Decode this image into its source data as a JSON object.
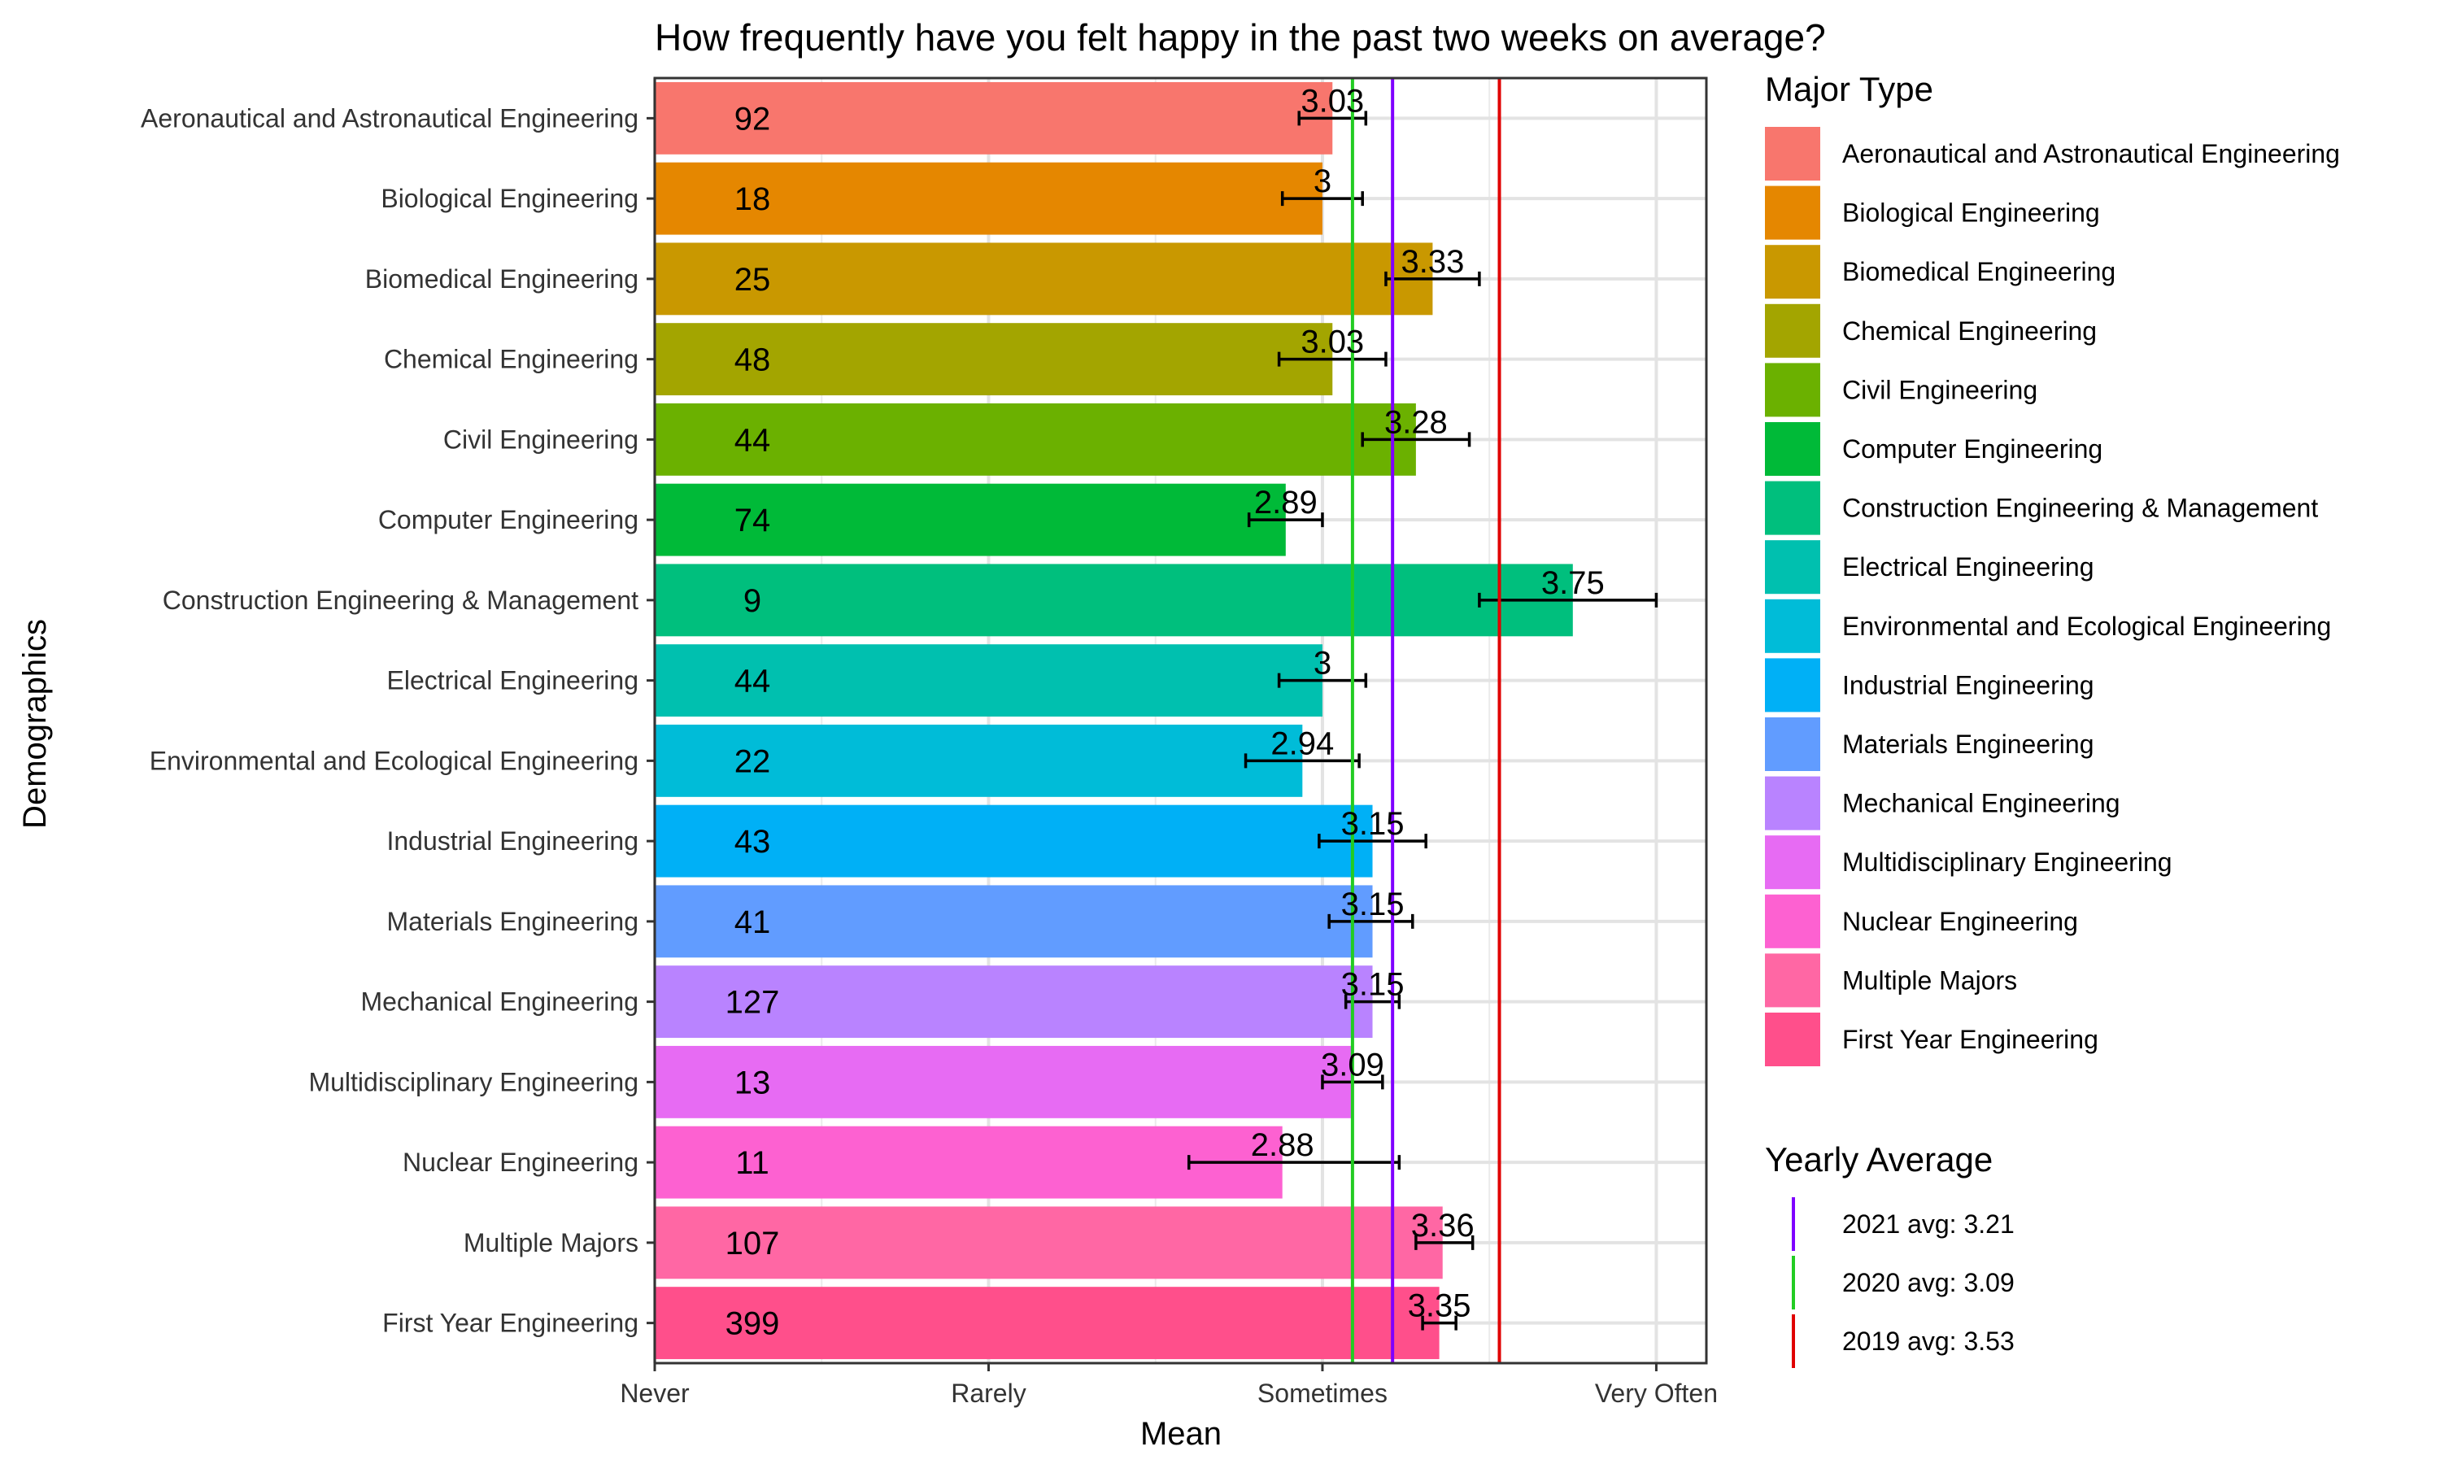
{
  "chart_data": {
    "type": "bar",
    "orientation": "horizontal",
    "title": "How frequently have you felt happy in the past two weeks on average?",
    "xlabel": "Mean",
    "ylabel": "Demographics",
    "xlim": [
      1,
      4.15
    ],
    "x_ticks": [
      {
        "value": 1,
        "label": "Never"
      },
      {
        "value": 2,
        "label": "Rarely"
      },
      {
        "value": 3,
        "label": "Sometimes"
      },
      {
        "value": 4,
        "label": "Very Often"
      }
    ],
    "grid": true,
    "categories": [
      "Aeronautical and Astronautical Engineering",
      "Biological Engineering",
      "Biomedical Engineering",
      "Chemical Engineering",
      "Civil Engineering",
      "Computer Engineering",
      "Construction Engineering & Management",
      "Electrical Engineering",
      "Environmental and Ecological Engineering",
      "Industrial Engineering",
      "Materials Engineering",
      "Mechanical Engineering",
      "Multidisciplinary Engineering",
      "Nuclear Engineering",
      "Multiple Majors",
      "First Year Engineering"
    ],
    "values": [
      3.03,
      3.0,
      3.33,
      3.03,
      3.28,
      2.89,
      3.75,
      3.0,
      2.94,
      3.15,
      3.15,
      3.15,
      3.09,
      2.88,
      3.36,
      3.35
    ],
    "value_labels": [
      "3.03",
      "3",
      "3.33",
      "3.03",
      "3.28",
      "2.89",
      "3.75",
      "3",
      "2.94",
      "3.15",
      "3.15",
      "3.15",
      "3.09",
      "2.88",
      "3.36",
      "3.35"
    ],
    "counts": [
      92,
      18,
      25,
      48,
      44,
      74,
      9,
      44,
      22,
      43,
      41,
      127,
      13,
      11,
      107,
      399
    ],
    "error_bars": [
      [
        2.93,
        3.13
      ],
      [
        2.88,
        3.12
      ],
      [
        3.19,
        3.47
      ],
      [
        2.87,
        3.19
      ],
      [
        3.12,
        3.44
      ],
      [
        2.78,
        3.0
      ],
      [
        3.47,
        4.0
      ],
      [
        2.87,
        3.13
      ],
      [
        2.77,
        3.11
      ],
      [
        2.99,
        3.31
      ],
      [
        3.02,
        3.27
      ],
      [
        3.07,
        3.23
      ],
      [
        3.0,
        3.18
      ],
      [
        2.6,
        3.23
      ],
      [
        3.28,
        3.45
      ],
      [
        3.3,
        3.4
      ]
    ],
    "colors": [
      "#F8766D",
      "#E58700",
      "#C99800",
      "#A3A500",
      "#6BB100",
      "#00BA38",
      "#00BF7D",
      "#00C0AF",
      "#00BCD8",
      "#00B0F6",
      "#619CFF",
      "#B983FF",
      "#E76BF3",
      "#FD61D1",
      "#FF67A4",
      "#FF4F8B"
    ],
    "legend": {
      "title": "Major Type",
      "position": "right"
    },
    "reference_lines": {
      "title": "Yearly Average",
      "lines": [
        {
          "label": "2021 avg: 3.21",
          "value": 3.21,
          "color": "#7F00FF"
        },
        {
          "label": "2020 avg: 3.09",
          "value": 3.09,
          "color": "#22CC22"
        },
        {
          "label": "2019 avg: 3.53",
          "value": 3.53,
          "color": "#E00000"
        }
      ]
    }
  }
}
